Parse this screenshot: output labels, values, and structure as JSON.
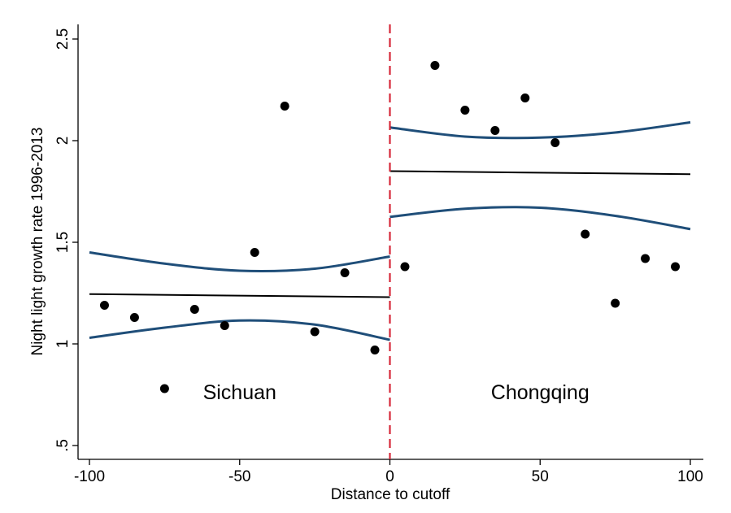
{
  "chart_data": {
    "type": "scatter",
    "title": "",
    "xlabel": "Distance to cutoff",
    "ylabel": "Night light growth rate 1996-2013",
    "xlim": [
      -100,
      100
    ],
    "ylim": [
      0.5,
      2.5
    ],
    "x_ticks": [
      -100,
      -50,
      0,
      50,
      100
    ],
    "x_tick_labels": [
      "-100",
      "-50",
      "0",
      "50",
      "100"
    ],
    "y_ticks": [
      0.5,
      1,
      1.5,
      2,
      2.5
    ],
    "y_tick_labels": [
      ".5",
      "1",
      "1.5",
      "2",
      "2.5"
    ],
    "grid": false,
    "cutoff_x": 0,
    "annotations": [
      {
        "text": "Sichuan",
        "x": -50,
        "y": 0.76
      },
      {
        "text": "Chongqing",
        "x": 50,
        "y": 0.76
      }
    ],
    "colors": {
      "points": "#000000",
      "fit": "#000000",
      "ci": "#1f4e79",
      "cutoff": "#d62738",
      "axis": "#000000"
    },
    "series": [
      {
        "type": "scatter",
        "points": [
          [
            -95,
            1.19
          ],
          [
            -85,
            1.13
          ],
          [
            -75,
            0.78
          ],
          [
            -65,
            1.17
          ],
          [
            -55,
            1.09
          ],
          [
            -45,
            1.45
          ],
          [
            -35,
            2.17
          ],
          [
            -25,
            1.06
          ],
          [
            -15,
            1.35
          ],
          [
            -5,
            0.97
          ],
          [
            5,
            1.38
          ],
          [
            15,
            2.37
          ],
          [
            25,
            2.15
          ],
          [
            35,
            2.05
          ],
          [
            45,
            2.21
          ],
          [
            55,
            1.99
          ],
          [
            65,
            1.54
          ],
          [
            75,
            1.2
          ],
          [
            85,
            1.42
          ],
          [
            95,
            1.38
          ]
        ]
      },
      {
        "type": "line",
        "role": "fit",
        "points": [
          [
            -100,
            1.245
          ],
          [
            0,
            1.23
          ]
        ]
      },
      {
        "type": "line",
        "role": "fit",
        "points": [
          [
            0,
            1.85
          ],
          [
            100,
            1.835
          ]
        ]
      },
      {
        "type": "line",
        "role": "ci-upper",
        "points": [
          [
            -100,
            1.45
          ],
          [
            -75,
            1.395
          ],
          [
            -50,
            1.36
          ],
          [
            -25,
            1.37
          ],
          [
            0,
            1.43
          ]
        ]
      },
      {
        "type": "line",
        "role": "ci-lower",
        "points": [
          [
            -100,
            1.03
          ],
          [
            -75,
            1.08
          ],
          [
            -50,
            1.115
          ],
          [
            -25,
            1.095
          ],
          [
            0,
            1.02
          ]
        ]
      },
      {
        "type": "line",
        "role": "ci-upper",
        "points": [
          [
            0,
            2.065
          ],
          [
            25,
            2.02
          ],
          [
            50,
            2.015
          ],
          [
            75,
            2.04
          ],
          [
            100,
            2.09
          ]
        ]
      },
      {
        "type": "line",
        "role": "ci-lower",
        "points": [
          [
            0,
            1.625
          ],
          [
            25,
            1.665
          ],
          [
            50,
            1.67
          ],
          [
            75,
            1.63
          ],
          [
            100,
            1.565
          ]
        ]
      }
    ]
  }
}
